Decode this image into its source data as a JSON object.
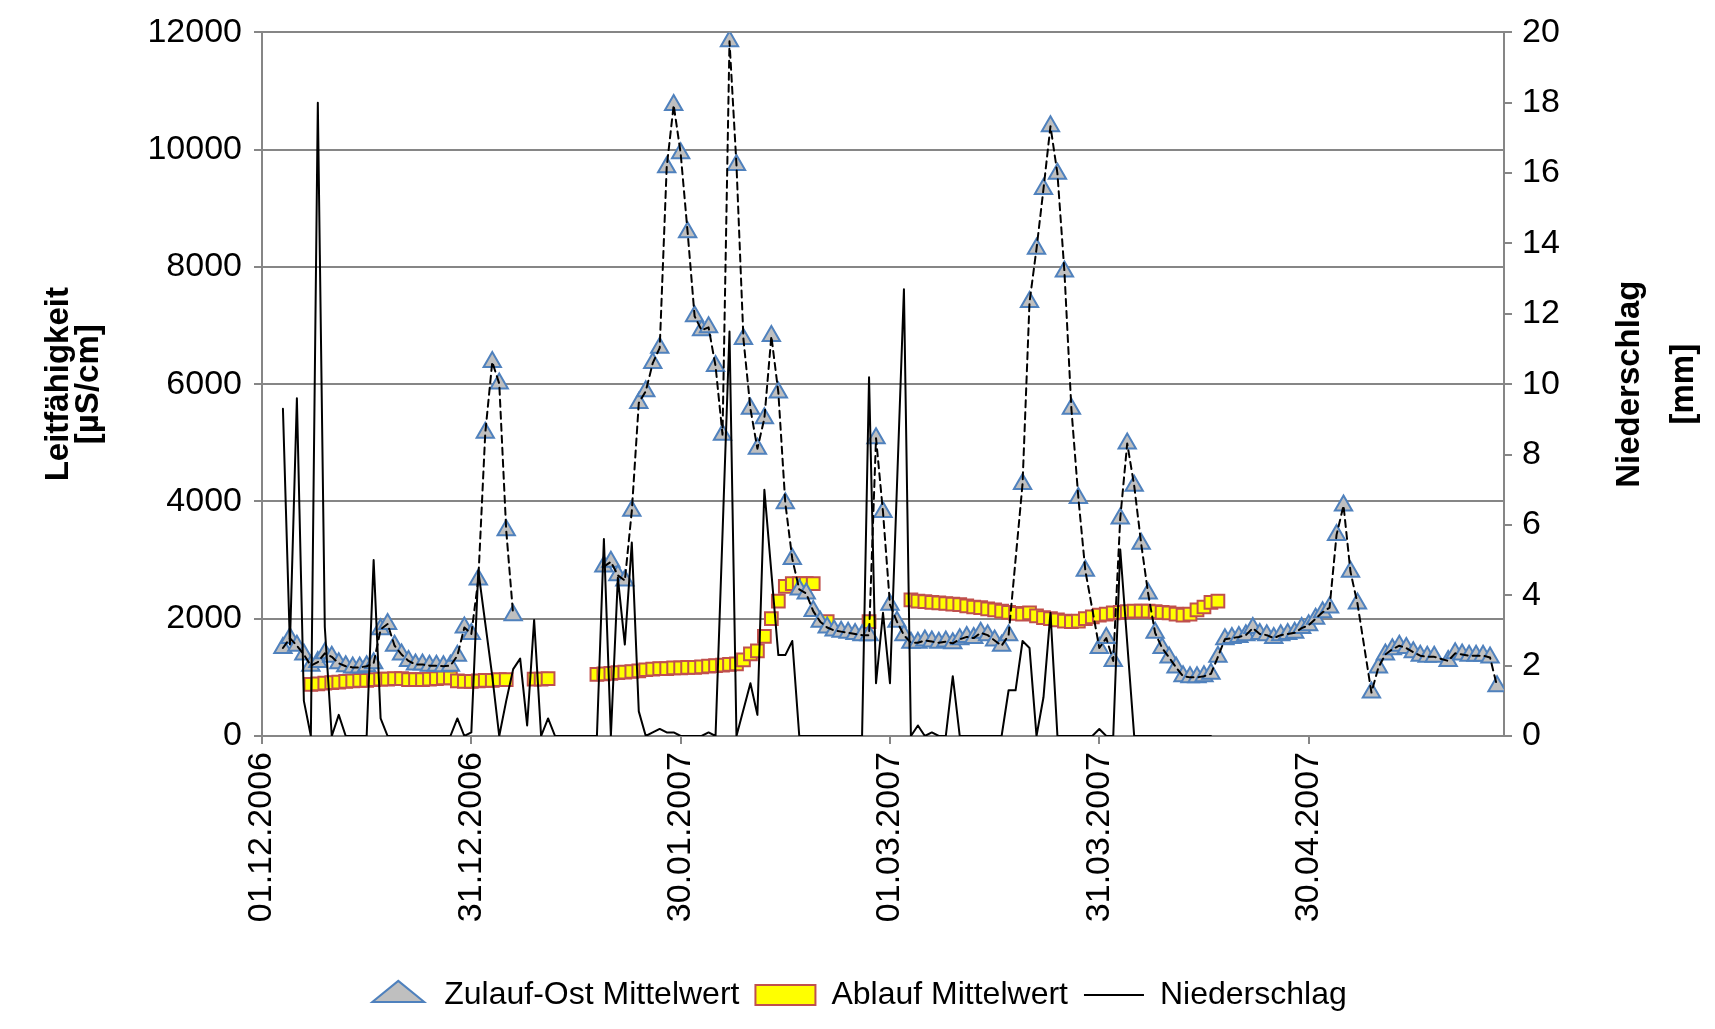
{
  "chart_data": {
    "type": "line",
    "ylabel": "Leitfähigkeit\n[µS/cm]",
    "y2label": "Niederschlag\n[mm]",
    "xlim": [
      "2006-12-01",
      "2007-05-28"
    ],
    "xticks": [
      {
        "value": "2006-12-01",
        "label": "01.12.2006"
      },
      {
        "value": "2006-12-31",
        "label": "31.12.2006"
      },
      {
        "value": "2007-01-30",
        "label": "30.01.2007"
      },
      {
        "value": "2007-03-01",
        "label": "01.03.2007"
      },
      {
        "value": "2007-03-31",
        "label": "31.03.2007"
      },
      {
        "value": "2007-04-30",
        "label": "30.04.2007"
      }
    ],
    "ylim": [
      0,
      12000
    ],
    "yticks": [
      0,
      2000,
      4000,
      6000,
      8000,
      10000,
      12000
    ],
    "y2lim": [
      0,
      20
    ],
    "y2ticks": [
      0,
      2,
      4,
      6,
      8,
      10,
      12,
      14,
      16,
      18,
      20
    ],
    "grid": "y",
    "legend": "bottom",
    "series": [
      {
        "name": "Zulauf-Ost Mittelwert",
        "type": "line",
        "marker": "triangle",
        "line_style": "dashed",
        "color": "#bfbfbf",
        "x": [
          "2006-12-04",
          "2006-12-05",
          "2006-12-06",
          "2006-12-07",
          "2006-12-08",
          "2006-12-09",
          "2006-12-10",
          "2006-12-11",
          "2006-12-12",
          "2006-12-13",
          "2006-12-14",
          "2006-12-15",
          "2006-12-16",
          "2006-12-17",
          "2006-12-18",
          "2006-12-19",
          "2006-12-20",
          "2006-12-21",
          "2006-12-22",
          "2006-12-23",
          "2006-12-24",
          "2006-12-25",
          "2006-12-26",
          "2006-12-27",
          "2006-12-28",
          "2006-12-29",
          "2006-12-30",
          "2006-12-31",
          "2007-01-01",
          "2007-01-02",
          "2007-01-03",
          "2007-01-04",
          "2007-01-05",
          "2007-01-06",
          "2007-01-07",
          "2007-01-19",
          "2007-01-20",
          "2007-01-21",
          "2007-01-22",
          "2007-01-23",
          "2007-01-24",
          "2007-01-25",
          "2007-01-26",
          "2007-01-27",
          "2007-01-28",
          "2007-01-29",
          "2007-01-30",
          "2007-01-31",
          "2007-02-01",
          "2007-02-02",
          "2007-02-03",
          "2007-02-04",
          "2007-02-05",
          "2007-02-06",
          "2007-02-07",
          "2007-02-08",
          "2007-02-09",
          "2007-02-10",
          "2007-02-11",
          "2007-02-12",
          "2007-02-13",
          "2007-02-14",
          "2007-02-15",
          "2007-02-16",
          "2007-02-17",
          "2007-02-18",
          "2007-02-19",
          "2007-02-20",
          "2007-02-21",
          "2007-02-22",
          "2007-02-23",
          "2007-02-24",
          "2007-02-25",
          "2007-02-26",
          "2007-02-27",
          "2007-02-28",
          "2007-03-01",
          "2007-03-02",
          "2007-03-03",
          "2007-03-04",
          "2007-03-05",
          "2007-03-06",
          "2007-03-07",
          "2007-03-08",
          "2007-03-09",
          "2007-03-10",
          "2007-03-11",
          "2007-03-12",
          "2007-03-13",
          "2007-03-14",
          "2007-03-15",
          "2007-03-16",
          "2007-03-17",
          "2007-03-18",
          "2007-03-20",
          "2007-03-21",
          "2007-03-22",
          "2007-03-23",
          "2007-03-24",
          "2007-03-25",
          "2007-03-26",
          "2007-03-27",
          "2007-03-28",
          "2007-03-29",
          "2007-03-31",
          "2007-04-01",
          "2007-04-02",
          "2007-04-03",
          "2007-04-04",
          "2007-04-05",
          "2007-04-06",
          "2007-04-07",
          "2007-04-08",
          "2007-04-09",
          "2007-04-10",
          "2007-04-11",
          "2007-04-12",
          "2007-04-13",
          "2007-04-14",
          "2007-04-15",
          "2007-04-16",
          "2007-04-17",
          "2007-04-18",
          "2007-04-19",
          "2007-04-20",
          "2007-04-21",
          "2007-04-22",
          "2007-04-23",
          "2007-04-24",
          "2007-04-25",
          "2007-04-26",
          "2007-04-27",
          "2007-04-28",
          "2007-04-29",
          "2007-04-30",
          "2007-05-01",
          "2007-05-02",
          "2007-05-03",
          "2007-05-04",
          "2007-05-05",
          "2007-05-06",
          "2007-05-07",
          "2007-05-09",
          "2007-05-10",
          "2007-05-11",
          "2007-05-12",
          "2007-05-13",
          "2007-05-14",
          "2007-05-15",
          "2007-05-16",
          "2007-05-17",
          "2007-05-18",
          "2007-05-20",
          "2007-05-21",
          "2007-05-22",
          "2007-05-23",
          "2007-05-24",
          "2007-05-25",
          "2007-05-26",
          "2007-05-27"
        ],
        "values": [
          1500,
          1670,
          1540,
          1390,
          1200,
          1260,
          1410,
          1350,
          1240,
          1190,
          1170,
          1170,
          1190,
          1240,
          1820,
          1910,
          1540,
          1390,
          1280,
          1220,
          1220,
          1200,
          1200,
          1190,
          1200,
          1370,
          1850,
          1740,
          2670,
          5170,
          6380,
          6010,
          3510,
          2060,
          null,
          2890,
          2970,
          2740,
          2650,
          3840,
          5680,
          5880,
          6360,
          6620,
          9700,
          10760,
          9940,
          8590,
          7160,
          6920,
          6970,
          6310,
          5140,
          11850,
          9740,
          6770,
          5580,
          4900,
          5420,
          6820,
          5860,
          3970,
          3020,
          2500,
          2430,
          2130,
          1950,
          1850,
          1800,
          1780,
          1760,
          1740,
          1720,
          1720,
          5080,
          3820,
          2240,
          1950,
          1720,
          1590,
          1590,
          1630,
          1610,
          1590,
          1610,
          1580,
          1650,
          1690,
          1670,
          1760,
          1720,
          1630,
          1540,
          1720,
          4300,
          7400,
          8310,
          9330,
          10400,
          9590,
          7920,
          5580,
          4060,
          2820,
          1500,
          1670,
          1280,
          3710,
          4990,
          4270,
          3280,
          2430,
          1760,
          1500,
          1340,
          1170,
          1020,
          1000,
          1000,
          1020,
          1060,
          1350,
          1650,
          1670,
          1690,
          1720,
          1840,
          1740,
          1720,
          1670,
          1720,
          1740,
          1760,
          1840,
          1890,
          2000,
          2110,
          2190,
          3430,
          3930,
          2800,
          2260,
          740,
          1170,
          1390,
          1480,
          1540,
          1500,
          1430,
          1370,
          1350,
          1350,
          1280,
          1410,
          1390,
          1370,
          1370,
          1370,
          1340,
          850
        ]
      },
      {
        "name": "Ablauf Mittelwert",
        "type": "scatter",
        "marker": "square",
        "color": "#ffff00",
        "x": [
          "2006-12-08",
          "2006-12-09",
          "2006-12-10",
          "2006-12-11",
          "2006-12-12",
          "2006-12-13",
          "2006-12-14",
          "2006-12-15",
          "2006-12-16",
          "2006-12-17",
          "2006-12-18",
          "2006-12-19",
          "2006-12-20",
          "2006-12-21",
          "2006-12-22",
          "2006-12-23",
          "2006-12-24",
          "2006-12-25",
          "2006-12-26",
          "2006-12-27",
          "2006-12-28",
          "2006-12-29",
          "2006-12-30",
          "2006-12-31",
          "2007-01-01",
          "2007-01-02",
          "2007-01-03",
          "2007-01-04",
          "2007-01-05",
          "2007-01-09",
          "2007-01-10",
          "2007-01-11",
          "2007-01-18",
          "2007-01-19",
          "2007-01-20",
          "2007-01-21",
          "2007-01-22",
          "2007-01-23",
          "2007-01-24",
          "2007-01-25",
          "2007-01-26",
          "2007-01-27",
          "2007-01-28",
          "2007-01-29",
          "2007-01-30",
          "2007-01-31",
          "2007-02-01",
          "2007-02-02",
          "2007-02-03",
          "2007-02-04",
          "2007-02-05",
          "2007-02-06",
          "2007-02-07",
          "2007-02-08",
          "2007-02-09",
          "2007-02-10",
          "2007-02-11",
          "2007-02-12",
          "2007-02-13",
          "2007-02-14",
          "2007-02-15",
          "2007-02-16",
          "2007-02-17",
          "2007-02-18",
          "2007-02-20",
          "2007-02-26",
          "2007-03-04",
          "2007-03-05",
          "2007-03-06",
          "2007-03-07",
          "2007-03-08",
          "2007-03-09",
          "2007-03-10",
          "2007-03-11",
          "2007-03-12",
          "2007-03-13",
          "2007-03-14",
          "2007-03-15",
          "2007-03-16",
          "2007-03-17",
          "2007-03-18",
          "2007-03-19",
          "2007-03-20",
          "2007-03-21",
          "2007-03-22",
          "2007-03-23",
          "2007-03-24",
          "2007-03-25",
          "2007-03-26",
          "2007-03-27",
          "2007-03-28",
          "2007-03-29",
          "2007-03-30",
          "2007-03-31",
          "2007-04-01",
          "2007-04-02",
          "2007-04-03",
          "2007-04-04",
          "2007-04-05",
          "2007-04-06",
          "2007-04-07",
          "2007-04-08",
          "2007-04-09",
          "2007-04-10",
          "2007-04-11",
          "2007-04-12",
          "2007-04-13",
          "2007-04-14",
          "2007-04-15",
          "2007-04-16",
          "2007-04-17"
        ],
        "values": [
          880,
          890,
          900,
          910,
          920,
          930,
          940,
          950,
          950,
          960,
          970,
          970,
          980,
          980,
          960,
          960,
          960,
          970,
          980,
          990,
          990,
          940,
          930,
          930,
          940,
          950,
          950,
          960,
          960,
          970,
          970,
          980,
          1050,
          1060,
          1070,
          1080,
          1090,
          1100,
          1110,
          1130,
          1140,
          1150,
          1150,
          1160,
          1160,
          1170,
          1170,
          1180,
          1190,
          1200,
          1210,
          1220,
          1230,
          1300,
          1400,
          1450,
          1700,
          2000,
          2300,
          2550,
          2600,
          2600,
          2600,
          2600,
          1950,
          1950,
          2320,
          2300,
          2290,
          2280,
          2270,
          2260,
          2250,
          2240,
          2220,
          2200,
          2190,
          2170,
          2150,
          2130,
          2110,
          2090,
          2080,
          2100,
          2050,
          2020,
          2000,
          1980,
          1960,
          1950,
          1960,
          2000,
          2030,
          2060,
          2080,
          2100,
          2110,
          2120,
          2130,
          2130,
          2130,
          2120,
          2110,
          2100,
          2080,
          2060,
          2080,
          2150,
          2200,
          2280,
          2300
        ]
      },
      {
        "name": "Niederschlag",
        "type": "line",
        "marker": "none",
        "line_style": "solid",
        "color": "#000000",
        "axis": "y2",
        "x": [
          "2006-12-04",
          "2006-12-05",
          "2006-12-06",
          "2006-12-07",
          "2006-12-08",
          "2006-12-09",
          "2006-12-10",
          "2006-12-11",
          "2006-12-12",
          "2006-12-13",
          "2006-12-16",
          "2006-12-17",
          "2006-12-18",
          "2006-12-19",
          "2006-12-28",
          "2006-12-29",
          "2006-12-30",
          "2006-12-31",
          "2007-01-01",
          "2007-01-02",
          "2007-01-03",
          "2007-01-04",
          "2007-01-05",
          "2007-01-06",
          "2007-01-07",
          "2007-01-08",
          "2007-01-09",
          "2007-01-10",
          "2007-01-11",
          "2007-01-12",
          "2007-01-18",
          "2007-01-19",
          "2007-01-20",
          "2007-01-21",
          "2007-01-22",
          "2007-01-23",
          "2007-01-24",
          "2007-01-25",
          "2007-01-26",
          "2007-01-27",
          "2007-01-28",
          "2007-01-29",
          "2007-01-30",
          "2007-02-02",
          "2007-02-03",
          "2007-02-04",
          "2007-02-06",
          "2007-02-07",
          "2007-02-09",
          "2007-02-10",
          "2007-02-11",
          "2007-02-13",
          "2007-02-14",
          "2007-02-15",
          "2007-02-16",
          "2007-02-25",
          "2007-02-26",
          "2007-02-27",
          "2007-02-28",
          "2007-03-01",
          "2007-03-03",
          "2007-03-04",
          "2007-03-05",
          "2007-03-06",
          "2007-03-07",
          "2007-03-08",
          "2007-03-09",
          "2007-03-10",
          "2007-03-11",
          "2007-03-17",
          "2007-03-18",
          "2007-03-19",
          "2007-03-20",
          "2007-03-21",
          "2007-03-22",
          "2007-03-23",
          "2007-03-24",
          "2007-03-25",
          "2007-03-30",
          "2007-03-31",
          "2007-04-01",
          "2007-04-02",
          "2007-04-03",
          "2007-04-05",
          "2007-04-16"
        ],
        "values": [
          9.3,
          2.6,
          9.6,
          1.0,
          0,
          18.0,
          3.1,
          0,
          0.6,
          0,
          0,
          5.0,
          0.5,
          0,
          0,
          0.5,
          0,
          0.1,
          4.7,
          3.2,
          1.7,
          0,
          1.0,
          1.9,
          2.2,
          0.3,
          3.3,
          0,
          0.5,
          0,
          0,
          5.6,
          0,
          4.5,
          2.6,
          5.5,
          0.7,
          0,
          0.1,
          0.2,
          0.1,
          0.1,
          0,
          0,
          0.1,
          0,
          11.5,
          0,
          1.5,
          0.6,
          7.0,
          2.3,
          2.3,
          2.7,
          0,
          0,
          10.2,
          1.5,
          3.5,
          1.5,
          12.7,
          0,
          0.3,
          0,
          0.1,
          0,
          0,
          1.7,
          0,
          0,
          1.3,
          1.3,
          2.7,
          2.5,
          0,
          1.1,
          3.5,
          0,
          0,
          0.2,
          0,
          0,
          5.3,
          0,
          0
        ]
      }
    ]
  }
}
